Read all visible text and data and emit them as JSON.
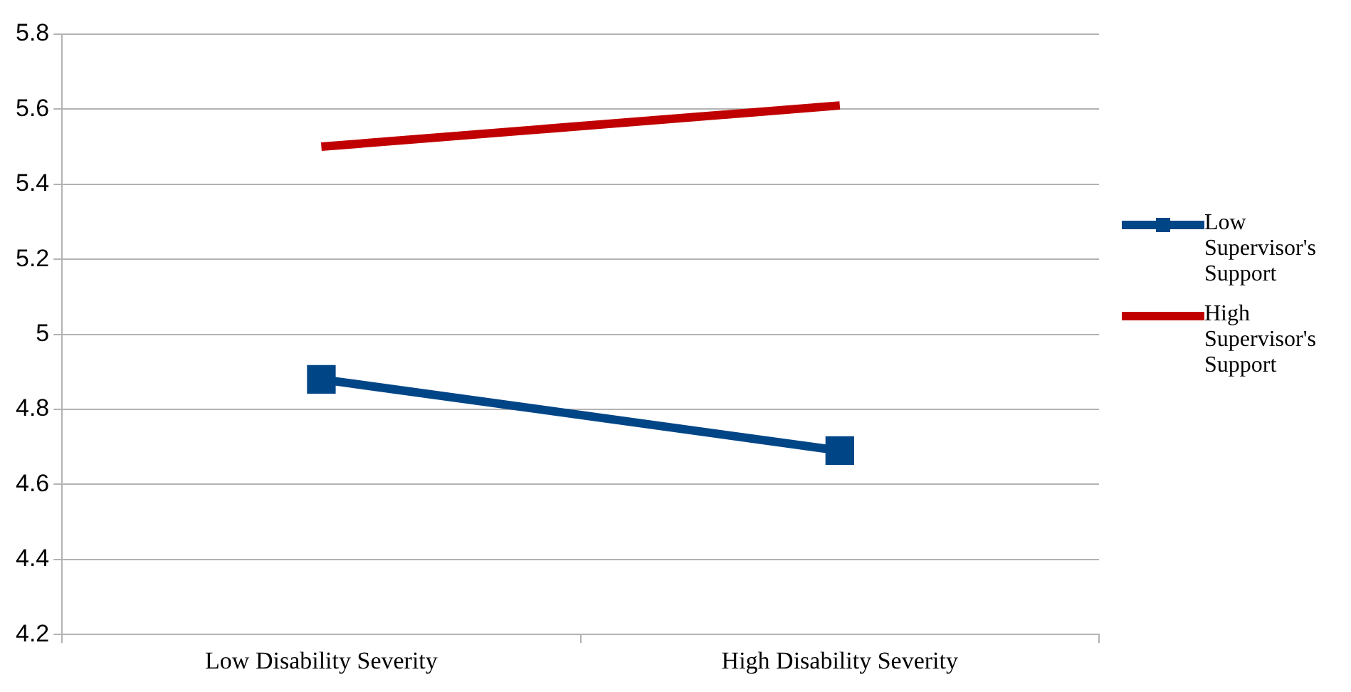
{
  "chart_data": {
    "type": "line",
    "categories": [
      "Low Disability Severity",
      "High Disability Severity"
    ],
    "series": [
      {
        "name": "Low Supervisor's Support",
        "color": "#004586",
        "values": [
          4.88,
          4.69
        ],
        "marker": "square"
      },
      {
        "name": "High Supervisor's Support",
        "color": "#c00000",
        "values": [
          5.5,
          5.61
        ],
        "marker": "none"
      }
    ],
    "ylim": [
      4.2,
      5.8
    ],
    "yticks": [
      4.2,
      4.4,
      4.6,
      4.8,
      5,
      5.2,
      5.4,
      5.6,
      5.8
    ],
    "grid": "y",
    "legend": "right",
    "line_style": "solid"
  }
}
